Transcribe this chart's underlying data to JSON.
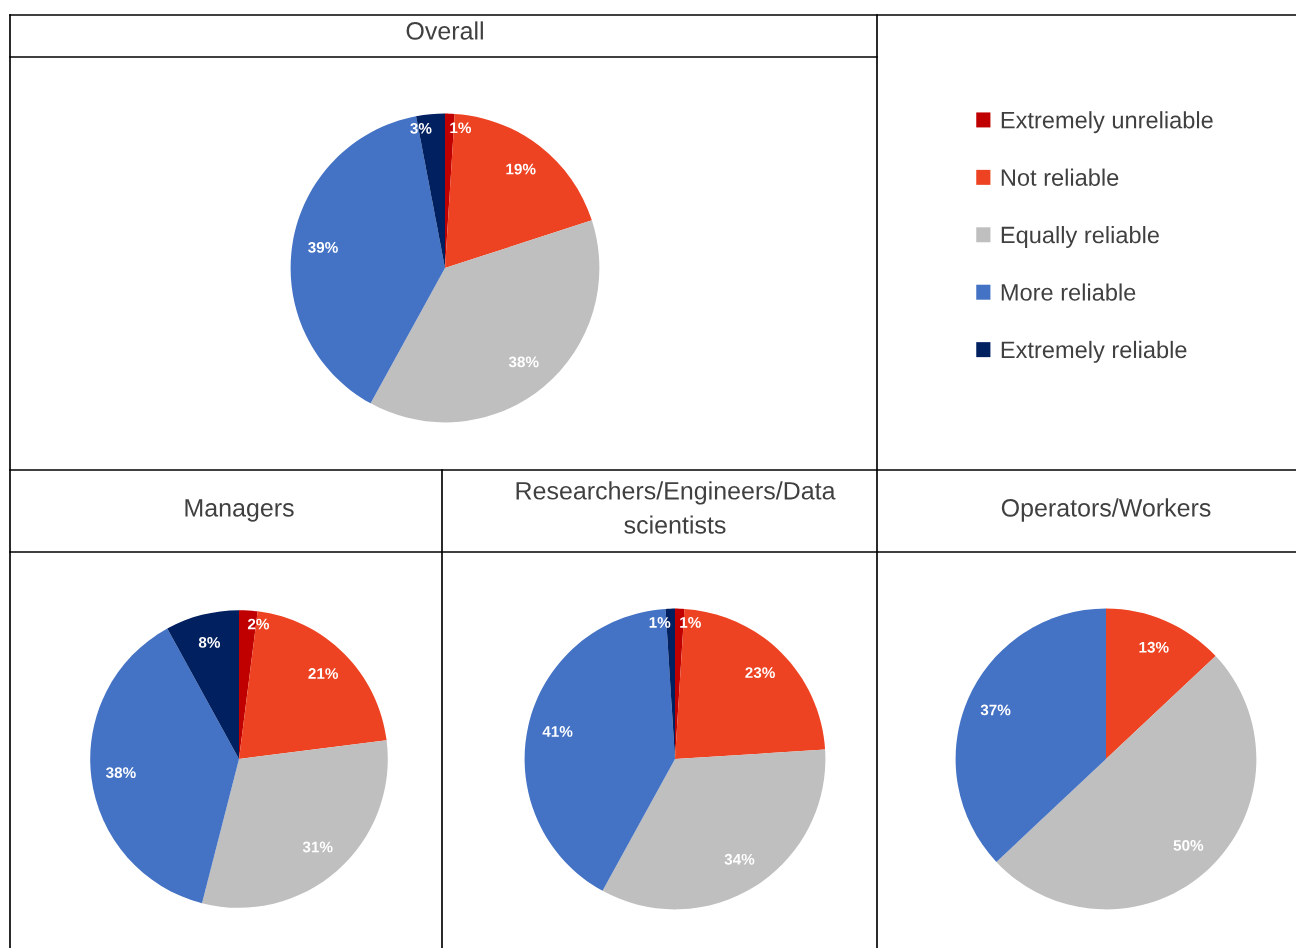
{
  "chart_data": [
    {
      "type": "pie",
      "title": "Overall",
      "categories": [
        "Extremely unreliable",
        "Not reliable",
        "Equally reliable",
        "More reliable",
        "Extremely reliable"
      ],
      "values": [
        1,
        19,
        38,
        39,
        3
      ],
      "colors": [
        "#c00000",
        "#ee4322",
        "#bfbfbf",
        "#4472c4",
        "#002060"
      ],
      "value_labels": [
        "1%",
        "19%",
        "38%",
        "39%",
        "3%"
      ],
      "legend": "right"
    },
    {
      "type": "pie",
      "title": "Managers",
      "categories": [
        null,
        null,
        null,
        null,
        null
      ],
      "values": [
        2,
        21,
        31,
        38,
        8
      ],
      "colors": [
        "#c00000",
        "#ee4322",
        "#bfbfbf",
        "#4472c4",
        "#002060"
      ],
      "value_labels": [
        "2%",
        "21%",
        "31%",
        "38%",
        "8%"
      ]
    },
    {
      "type": "pie",
      "title": "Researchers/Engineers/Data scientists",
      "categories": [
        null,
        null,
        null,
        null,
        null
      ],
      "values": [
        1,
        23,
        34,
        41,
        1
      ],
      "colors": [
        "#c00000",
        "#ee4322",
        "#bfbfbf",
        "#4472c4",
        "#002060"
      ],
      "value_labels": [
        "1%",
        "23%",
        "34%",
        "41%",
        "1%"
      ]
    },
    {
      "type": "pie",
      "title": "Operators/Workers",
      "categories": [
        null,
        null,
        null
      ],
      "values": [
        13,
        50,
        37
      ],
      "colors": [
        "#ee4322",
        "#bfbfbf",
        "#4472c4"
      ],
      "value_labels": [
        "13%",
        "50%",
        "37%"
      ]
    }
  ]
}
